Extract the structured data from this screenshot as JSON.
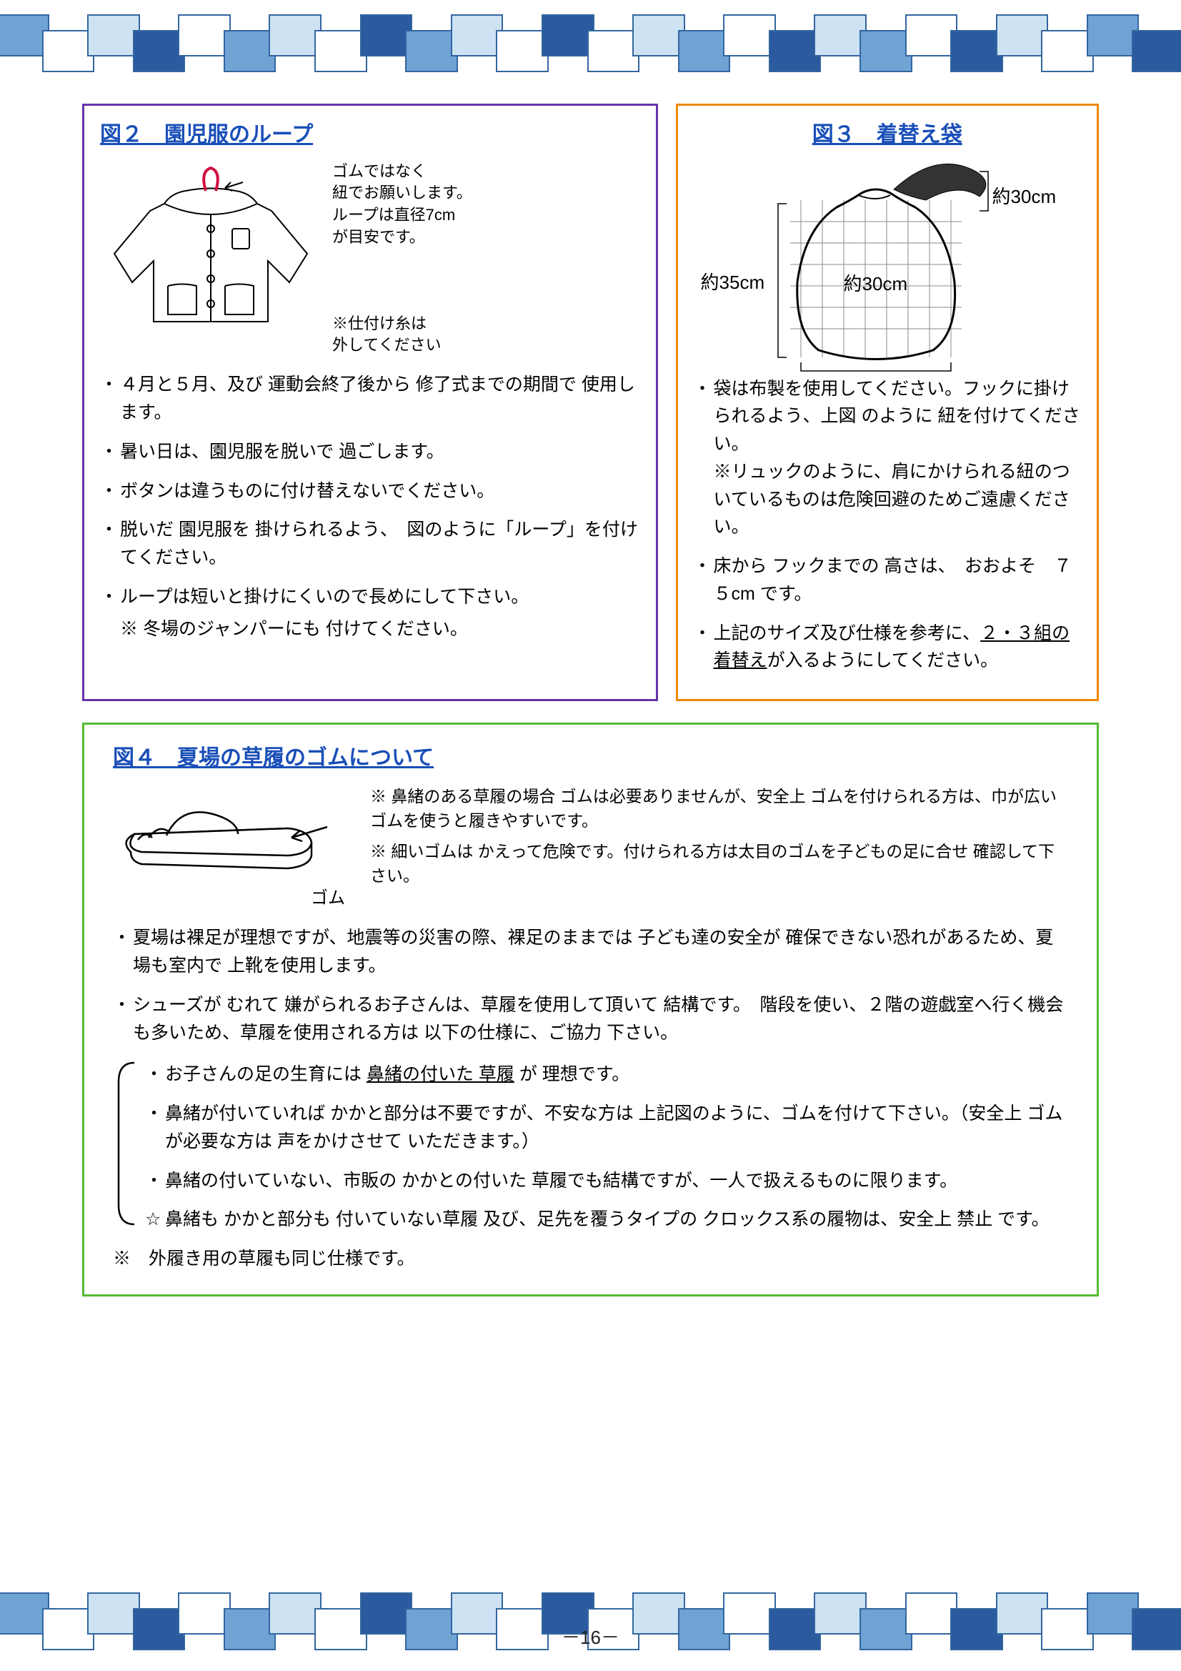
{
  "fig2": {
    "title": "図２　園児服のループ",
    "loop_note": "ゴムではなく\n紐でお願いします。\nループは直径7cm\nが目安です。",
    "basting_note": "※仕付け糸は\n外してください",
    "bullets": [
      "４月と５月、及び 運動会終了後から 修了式までの期間で 使用します。",
      "暑い日は、園児服を脱いで 過ごします。",
      "ボタンは違うものに付け替えないでください。",
      "脱いだ 園児服を 掛けられるよう、　図のように「ループ」を付けてください。",
      "ループは短いと掛けにくいので長めにして下さい。"
    ],
    "winter_note": "※ 冬場のジャンパーにも 付けてください。"
  },
  "fig3": {
    "title": "図３　着替え袋",
    "dim_h": "約35cm",
    "dim_w": "約30cm",
    "dim_loop": "約30cm",
    "bullets": [
      "袋は布製を使用してください。フックに掛けられるよう、上図 のように 紐を付けてください。\n※リュックのように、肩にかけられる紐のついているものは危険回避のためご遠慮ください。",
      "床から フックまでの 高さは、　おおよそ　７５cm です。",
      "上記のサイズ及び仕様を参考に、２・３組の着替えが入るようにしてください。"
    ]
  },
  "fig4": {
    "title": "図４　夏場の草履のゴムについて",
    "gom_label": "ゴム",
    "side_notes": [
      "※ 鼻緒のある草履の場合 ゴムは必要ありませんが、安全上 ゴムを付けられる方は、巾が広いゴムを使うと履きやすいです。",
      "※ 細いゴムは かえって危険です。付けられる方は太目のゴムを子どもの足に合せ 確認して下さい。"
    ],
    "intro_bullets": [
      "夏場は裸足が理想ですが、地震等の災害の際、裸足のままでは 子ども達の安全が 確保できない恐れがあるため、夏場も室内で 上靴を使用します。",
      "シューズが むれて 嫌がられるお子さんは、草履を使用して頂いて 結構です。　階段を使い、２階の遊戯室へ行く機会も多いため、草履を使用される方は 以下の仕様に、ご協力 下さい。"
    ],
    "bracket_bullets": [
      "お子さんの足の生育には 鼻緒の付いた 草履 が 理想です。",
      "鼻緒が付いていれば かかと部分は不要ですが、不安な方は 上記図のように、ゴムを付けて下さい。（安全上 ゴムが必要な方は 声をかけさせて いただきます。）",
      "鼻緒の付いていない、市販の かかとの付いた 草履でも結構ですが、一人で扱えるものに限ります。"
    ],
    "star_item": "鼻緒も かかと部分も 付いていない草履 及び、足先を覆うタイプの クロックス系の履物は、安全上 禁止 です。",
    "outer_note": "※　外履き用の草履も同じ仕様です。"
  },
  "page_number": "－16－",
  "colors": {
    "dark": "#2b5a9e",
    "mid": "#6fa3d4",
    "light": "#cde2f2",
    "white": "#ffffff",
    "purple": "#6633aa",
    "orange": "#ee8800",
    "green": "#55bb33",
    "link": "#1a4fb8",
    "loop_red": "#d01040"
  }
}
